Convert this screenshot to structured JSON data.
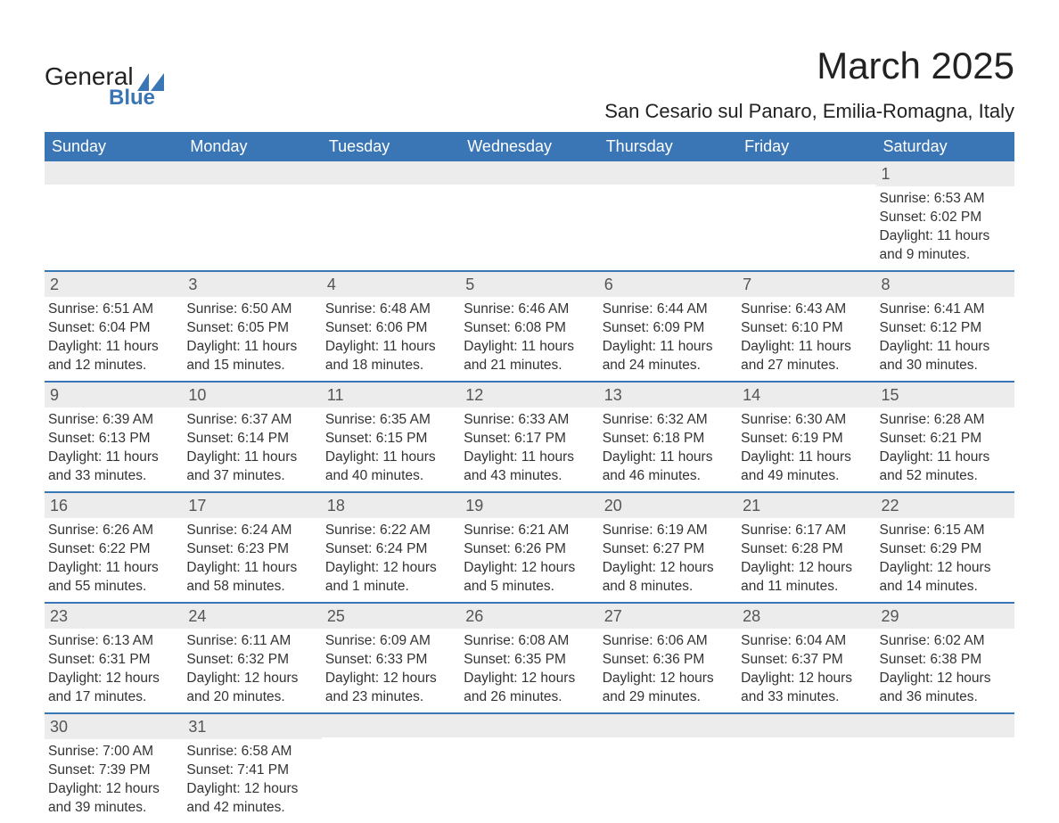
{
  "brand": {
    "word1": "General",
    "word2": "Blue"
  },
  "colors": {
    "header_bg": "#3a75b5",
    "header_text": "#ffffff",
    "numbar_bg": "#ececec",
    "numbar_text": "#555555",
    "text": "#333333",
    "divider": "#3a75b5",
    "page_bg": "#ffffff",
    "logo_shape": "#3a75b5"
  },
  "title": "March 2025",
  "location": "San Cesario sul Panaro, Emilia-Romagna, Italy",
  "day_headers": [
    "Sunday",
    "Monday",
    "Tuesday",
    "Wednesday",
    "Thursday",
    "Friday",
    "Saturday"
  ],
  "weeks": [
    [
      {
        "empty": true
      },
      {
        "empty": true
      },
      {
        "empty": true
      },
      {
        "empty": true
      },
      {
        "empty": true
      },
      {
        "empty": true
      },
      {
        "num": "1",
        "sunrise": "Sunrise: 6:53 AM",
        "sunset": "Sunset: 6:02 PM",
        "daylight": "Daylight: 11 hours and 9 minutes."
      }
    ],
    [
      {
        "num": "2",
        "sunrise": "Sunrise: 6:51 AM",
        "sunset": "Sunset: 6:04 PM",
        "daylight": "Daylight: 11 hours and 12 minutes."
      },
      {
        "num": "3",
        "sunrise": "Sunrise: 6:50 AM",
        "sunset": "Sunset: 6:05 PM",
        "daylight": "Daylight: 11 hours and 15 minutes."
      },
      {
        "num": "4",
        "sunrise": "Sunrise: 6:48 AM",
        "sunset": "Sunset: 6:06 PM",
        "daylight": "Daylight: 11 hours and 18 minutes."
      },
      {
        "num": "5",
        "sunrise": "Sunrise: 6:46 AM",
        "sunset": "Sunset: 6:08 PM",
        "daylight": "Daylight: 11 hours and 21 minutes."
      },
      {
        "num": "6",
        "sunrise": "Sunrise: 6:44 AM",
        "sunset": "Sunset: 6:09 PM",
        "daylight": "Daylight: 11 hours and 24 minutes."
      },
      {
        "num": "7",
        "sunrise": "Sunrise: 6:43 AM",
        "sunset": "Sunset: 6:10 PM",
        "daylight": "Daylight: 11 hours and 27 minutes."
      },
      {
        "num": "8",
        "sunrise": "Sunrise: 6:41 AM",
        "sunset": "Sunset: 6:12 PM",
        "daylight": "Daylight: 11 hours and 30 minutes."
      }
    ],
    [
      {
        "num": "9",
        "sunrise": "Sunrise: 6:39 AM",
        "sunset": "Sunset: 6:13 PM",
        "daylight": "Daylight: 11 hours and 33 minutes."
      },
      {
        "num": "10",
        "sunrise": "Sunrise: 6:37 AM",
        "sunset": "Sunset: 6:14 PM",
        "daylight": "Daylight: 11 hours and 37 minutes."
      },
      {
        "num": "11",
        "sunrise": "Sunrise: 6:35 AM",
        "sunset": "Sunset: 6:15 PM",
        "daylight": "Daylight: 11 hours and 40 minutes."
      },
      {
        "num": "12",
        "sunrise": "Sunrise: 6:33 AM",
        "sunset": "Sunset: 6:17 PM",
        "daylight": "Daylight: 11 hours and 43 minutes."
      },
      {
        "num": "13",
        "sunrise": "Sunrise: 6:32 AM",
        "sunset": "Sunset: 6:18 PM",
        "daylight": "Daylight: 11 hours and 46 minutes."
      },
      {
        "num": "14",
        "sunrise": "Sunrise: 6:30 AM",
        "sunset": "Sunset: 6:19 PM",
        "daylight": "Daylight: 11 hours and 49 minutes."
      },
      {
        "num": "15",
        "sunrise": "Sunrise: 6:28 AM",
        "sunset": "Sunset: 6:21 PM",
        "daylight": "Daylight: 11 hours and 52 minutes."
      }
    ],
    [
      {
        "num": "16",
        "sunrise": "Sunrise: 6:26 AM",
        "sunset": "Sunset: 6:22 PM",
        "daylight": "Daylight: 11 hours and 55 minutes."
      },
      {
        "num": "17",
        "sunrise": "Sunrise: 6:24 AM",
        "sunset": "Sunset: 6:23 PM",
        "daylight": "Daylight: 11 hours and 58 minutes."
      },
      {
        "num": "18",
        "sunrise": "Sunrise: 6:22 AM",
        "sunset": "Sunset: 6:24 PM",
        "daylight": "Daylight: 12 hours and 1 minute."
      },
      {
        "num": "19",
        "sunrise": "Sunrise: 6:21 AM",
        "sunset": "Sunset: 6:26 PM",
        "daylight": "Daylight: 12 hours and 5 minutes."
      },
      {
        "num": "20",
        "sunrise": "Sunrise: 6:19 AM",
        "sunset": "Sunset: 6:27 PM",
        "daylight": "Daylight: 12 hours and 8 minutes."
      },
      {
        "num": "21",
        "sunrise": "Sunrise: 6:17 AM",
        "sunset": "Sunset: 6:28 PM",
        "daylight": "Daylight: 12 hours and 11 minutes."
      },
      {
        "num": "22",
        "sunrise": "Sunrise: 6:15 AM",
        "sunset": "Sunset: 6:29 PM",
        "daylight": "Daylight: 12 hours and 14 minutes."
      }
    ],
    [
      {
        "num": "23",
        "sunrise": "Sunrise: 6:13 AM",
        "sunset": "Sunset: 6:31 PM",
        "daylight": "Daylight: 12 hours and 17 minutes."
      },
      {
        "num": "24",
        "sunrise": "Sunrise: 6:11 AM",
        "sunset": "Sunset: 6:32 PM",
        "daylight": "Daylight: 12 hours and 20 minutes."
      },
      {
        "num": "25",
        "sunrise": "Sunrise: 6:09 AM",
        "sunset": "Sunset: 6:33 PM",
        "daylight": "Daylight: 12 hours and 23 minutes."
      },
      {
        "num": "26",
        "sunrise": "Sunrise: 6:08 AM",
        "sunset": "Sunset: 6:35 PM",
        "daylight": "Daylight: 12 hours and 26 minutes."
      },
      {
        "num": "27",
        "sunrise": "Sunrise: 6:06 AM",
        "sunset": "Sunset: 6:36 PM",
        "daylight": "Daylight: 12 hours and 29 minutes."
      },
      {
        "num": "28",
        "sunrise": "Sunrise: 6:04 AM",
        "sunset": "Sunset: 6:37 PM",
        "daylight": "Daylight: 12 hours and 33 minutes."
      },
      {
        "num": "29",
        "sunrise": "Sunrise: 6:02 AM",
        "sunset": "Sunset: 6:38 PM",
        "daylight": "Daylight: 12 hours and 36 minutes."
      }
    ],
    [
      {
        "num": "30",
        "sunrise": "Sunrise: 7:00 AM",
        "sunset": "Sunset: 7:39 PM",
        "daylight": "Daylight: 12 hours and 39 minutes."
      },
      {
        "num": "31",
        "sunrise": "Sunrise: 6:58 AM",
        "sunset": "Sunset: 7:41 PM",
        "daylight": "Daylight: 12 hours and 42 minutes."
      },
      {
        "empty": true
      },
      {
        "empty": true
      },
      {
        "empty": true
      },
      {
        "empty": true
      },
      {
        "empty": true
      }
    ]
  ]
}
